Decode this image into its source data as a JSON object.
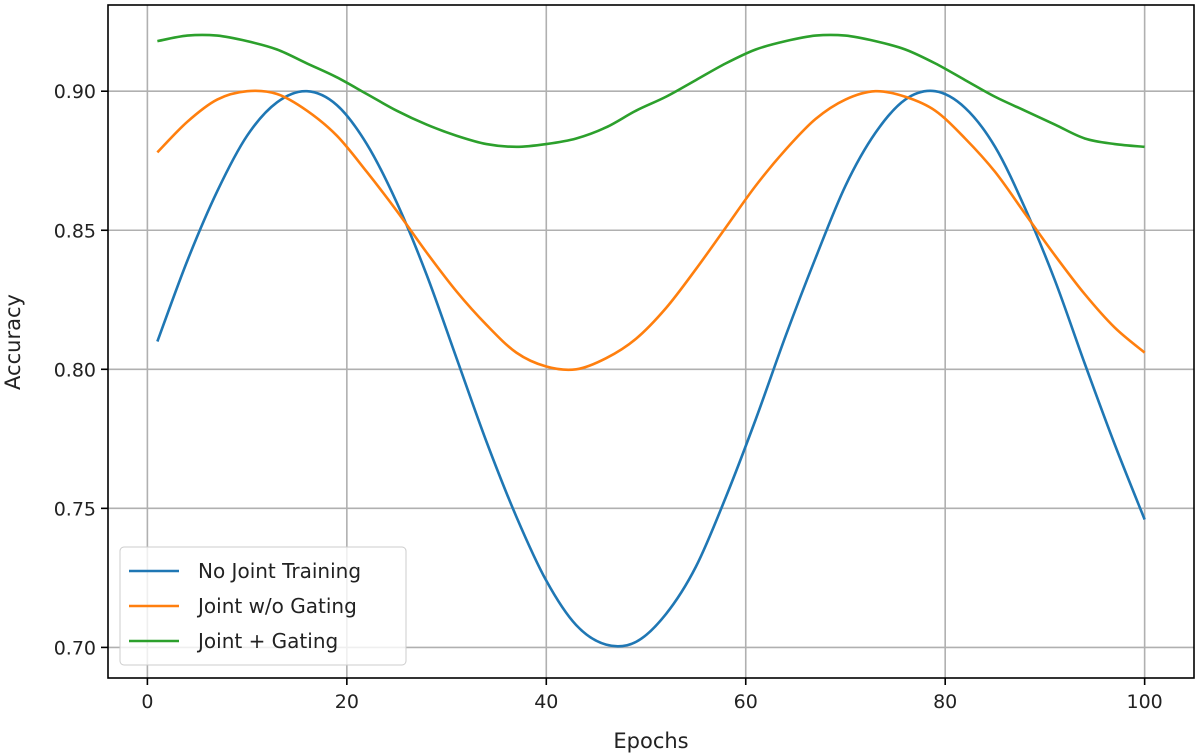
{
  "chart_data": {
    "type": "line",
    "title": "",
    "xlabel": "Epochs",
    "ylabel": "Accuracy",
    "xlim": [
      -3.95,
      104.95
    ],
    "ylim": [
      0.689,
      0.931
    ],
    "grid": true,
    "legend_position": "lower-left",
    "xticks": [
      0,
      20,
      40,
      60,
      80,
      100
    ],
    "xtick_labels": [
      "0",
      "20",
      "40",
      "60",
      "80",
      "100"
    ],
    "yticks": [
      0.7,
      0.75,
      0.8,
      0.85,
      0.9
    ],
    "ytick_labels": [
      "0.70",
      "0.75",
      "0.80",
      "0.85",
      "0.90"
    ],
    "x": [
      1,
      4,
      7,
      10,
      13,
      16,
      19,
      22,
      25,
      28,
      31,
      34,
      37,
      40,
      43,
      46,
      49,
      52,
      55,
      58,
      61,
      64,
      67,
      70,
      73,
      76,
      79,
      82,
      85,
      88,
      91,
      94,
      97,
      100
    ],
    "series": [
      {
        "name": "No Joint Training",
        "color": "#1f77b4",
        "values": [
          0.81,
          0.839,
          0.864,
          0.884,
          0.896,
          0.9,
          0.895,
          0.881,
          0.86,
          0.834,
          0.804,
          0.774,
          0.747,
          0.724,
          0.708,
          0.701,
          0.702,
          0.712,
          0.729,
          0.754,
          0.782,
          0.812,
          0.84,
          0.866,
          0.885,
          0.897,
          0.9,
          0.894,
          0.88,
          0.858,
          0.832,
          0.802,
          0.773,
          0.746
        ]
      },
      {
        "name": "Joint w/o Gating",
        "color": "#ff7f0e",
        "values": [
          0.878,
          0.889,
          0.897,
          0.9,
          0.899,
          0.893,
          0.884,
          0.871,
          0.857,
          0.842,
          0.828,
          0.816,
          0.806,
          0.801,
          0.8,
          0.804,
          0.811,
          0.822,
          0.836,
          0.851,
          0.866,
          0.879,
          0.89,
          0.897,
          0.9,
          0.898,
          0.893,
          0.883,
          0.871,
          0.856,
          0.841,
          0.827,
          0.815,
          0.806
        ]
      },
      {
        "name": "Joint + Gating",
        "color": "#2ca02c",
        "values": [
          0.918,
          0.92,
          0.92,
          0.918,
          0.915,
          0.91,
          0.905,
          0.899,
          0.893,
          0.888,
          0.884,
          0.881,
          0.88,
          0.881,
          0.883,
          0.887,
          0.893,
          0.898,
          0.904,
          0.91,
          0.915,
          0.918,
          0.92,
          0.92,
          0.918,
          0.915,
          0.91,
          0.904,
          0.898,
          0.893,
          0.888,
          0.883,
          0.881,
          0.88
        ]
      }
    ]
  }
}
